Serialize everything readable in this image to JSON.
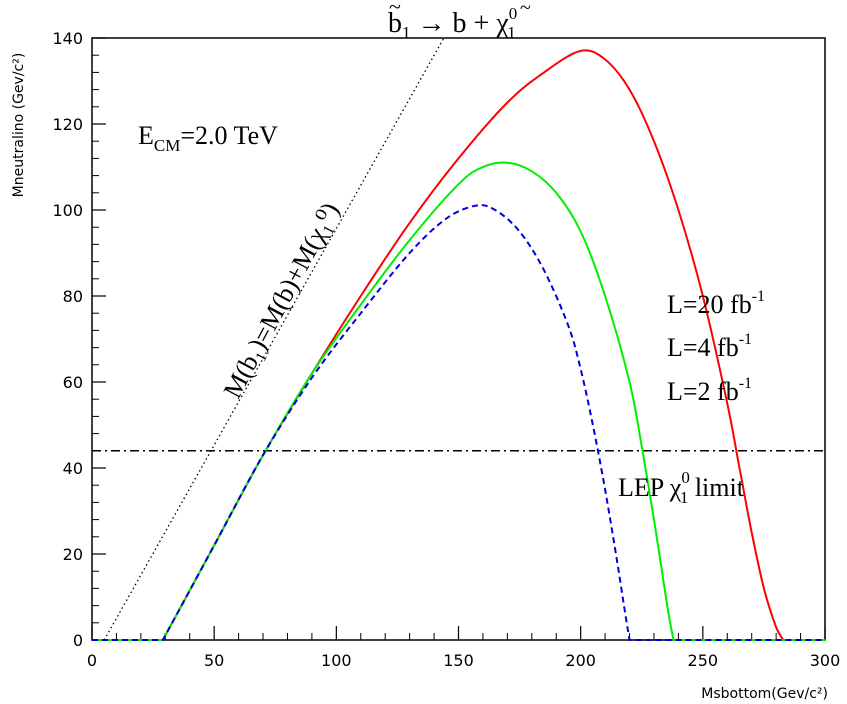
{
  "chart_data": {
    "type": "line",
    "xlabel": "Msbottom(Gev/c²)",
    "ylabel": "Mneutralino (Gev/c²)",
    "xlim": [
      0,
      300
    ],
    "ylim": [
      0,
      140
    ],
    "x_ticks": [
      0,
      50,
      100,
      150,
      200,
      250,
      300
    ],
    "y_ticks": [
      0,
      20,
      40,
      60,
      80,
      100,
      120,
      140
    ],
    "grid": false,
    "colors": {
      "L20": "#ff0000",
      "L4": "#00ee00",
      "L2": "#0000dd",
      "kinematic": "#000000",
      "lep": "#000000"
    },
    "series": [
      {
        "name": "L=20 fb-1",
        "color_key": "L20",
        "dash": "solid",
        "x": [
          0,
          29,
          50,
          70,
          90,
          110,
          130,
          150,
          170,
          185,
          200,
          210,
          220,
          230,
          240,
          250,
          260,
          265,
          270,
          275,
          280,
          283,
          300
        ],
        "y": [
          0,
          0,
          22,
          43,
          62,
          80,
          97,
          112,
          125,
          132,
          137,
          135,
          128,
          116,
          100,
          80,
          55,
          40,
          25,
          12,
          3,
          0,
          0
        ]
      },
      {
        "name": "L=4 fb-1",
        "color_key": "L4",
        "dash": "solid",
        "x": [
          0,
          29,
          50,
          70,
          90,
          110,
          130,
          150,
          160,
          170,
          180,
          190,
          200,
          210,
          220,
          225,
          230,
          233,
          236,
          238,
          300
        ],
        "y": [
          0,
          0,
          22,
          43,
          62,
          78,
          93,
          106,
          110,
          111,
          109,
          104,
          95,
          80,
          60,
          45,
          28,
          17,
          6,
          0,
          0
        ]
      },
      {
        "name": "L=2 fb-1",
        "color_key": "L2",
        "dash": "dashed",
        "x": [
          0,
          29,
          50,
          70,
          90,
          110,
          130,
          145,
          157,
          165,
          175,
          185,
          195,
          200,
          205,
          210,
          215,
          218,
          220,
          300
        ],
        "y": [
          0,
          0,
          22,
          43,
          61,
          76,
          90,
          98,
          101,
          100,
          95,
          86,
          73,
          63,
          50,
          35,
          18,
          7,
          0,
          0
        ]
      }
    ],
    "reference_lines": {
      "kinematic": {
        "x": [
          5,
          144
        ],
        "y": [
          0,
          140
        ]
      },
      "lep": {
        "y": 44
      }
    },
    "annotations": {
      "decay": {
        "b": "b",
        "sub1": "1",
        "arrow": "→",
        "rhs_b": "b",
        "plus": "+",
        "chi": "χ",
        "sup0": "0",
        "sub1b": "1"
      },
      "ecm": {
        "E": "E",
        "sub": "CM",
        "rest": "=2.0 TeV"
      },
      "mass_relation": "M(b₁)=M(b)+M(χ₁⁰)",
      "lum": [
        {
          "base": "L=20 fb",
          "sup": "-1"
        },
        {
          "base": "L=4 fb",
          "sup": "-1"
        },
        {
          "base": "L=2 fb",
          "sup": "-1"
        }
      ],
      "lep_label": {
        "pre": "LEP ",
        "chi": "χ",
        "sup": "0",
        "sub": "1",
        "post": " limit"
      }
    }
  }
}
